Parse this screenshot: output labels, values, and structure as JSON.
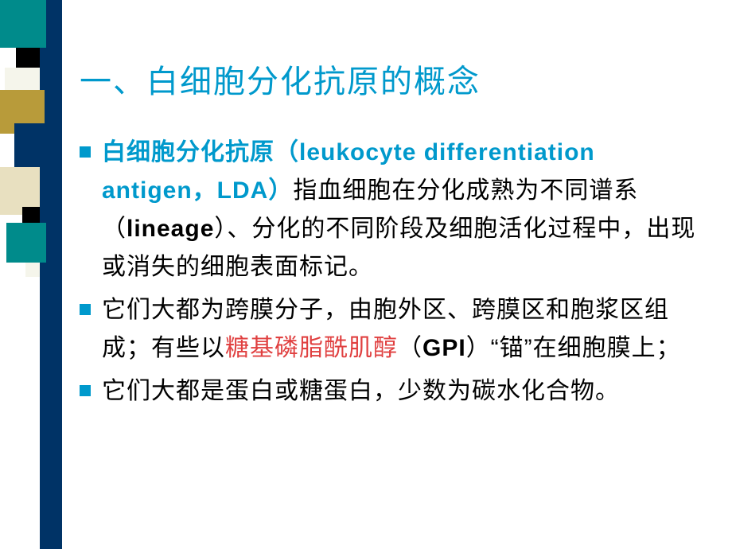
{
  "title": "一、白细胞分化抗原的概念",
  "bullets": [
    {
      "segments": [
        {
          "text": "白细胞分化抗原（leukocyte differentiation antigen，LDA）",
          "cls": "blue"
        },
        {
          "text": "指血细胞在分化成熟为不同谱系（",
          "cls": ""
        },
        {
          "text": "lineage",
          "cls": "bold"
        },
        {
          "text": "）、分化的不同阶段及细胞活化过程中，出现或消失的细胞表面标记。",
          "cls": ""
        }
      ]
    },
    {
      "segments": [
        {
          "text": "它们大都为跨膜分子，由胞外区、跨膜区和胞浆区组成；有些以",
          "cls": ""
        },
        {
          "text": "糖基磷脂酰肌醇",
          "cls": "red"
        },
        {
          "text": "（",
          "cls": ""
        },
        {
          "text": "GPI",
          "cls": "bold"
        },
        {
          "text": "）“锚”在细胞膜上；",
          "cls": ""
        }
      ]
    },
    {
      "segments": [
        {
          "text": "它们大都是蛋白或糖蛋白，少数为碳水化合物。",
          "cls": ""
        }
      ]
    }
  ],
  "deco": {
    "colors": {
      "darkblue": "#003366",
      "teal": "#008b8b",
      "mustard": "#b89b3a",
      "offwhite": "#f5f5eb",
      "cream": "#e8e0c0",
      "black": "#000000"
    }
  }
}
